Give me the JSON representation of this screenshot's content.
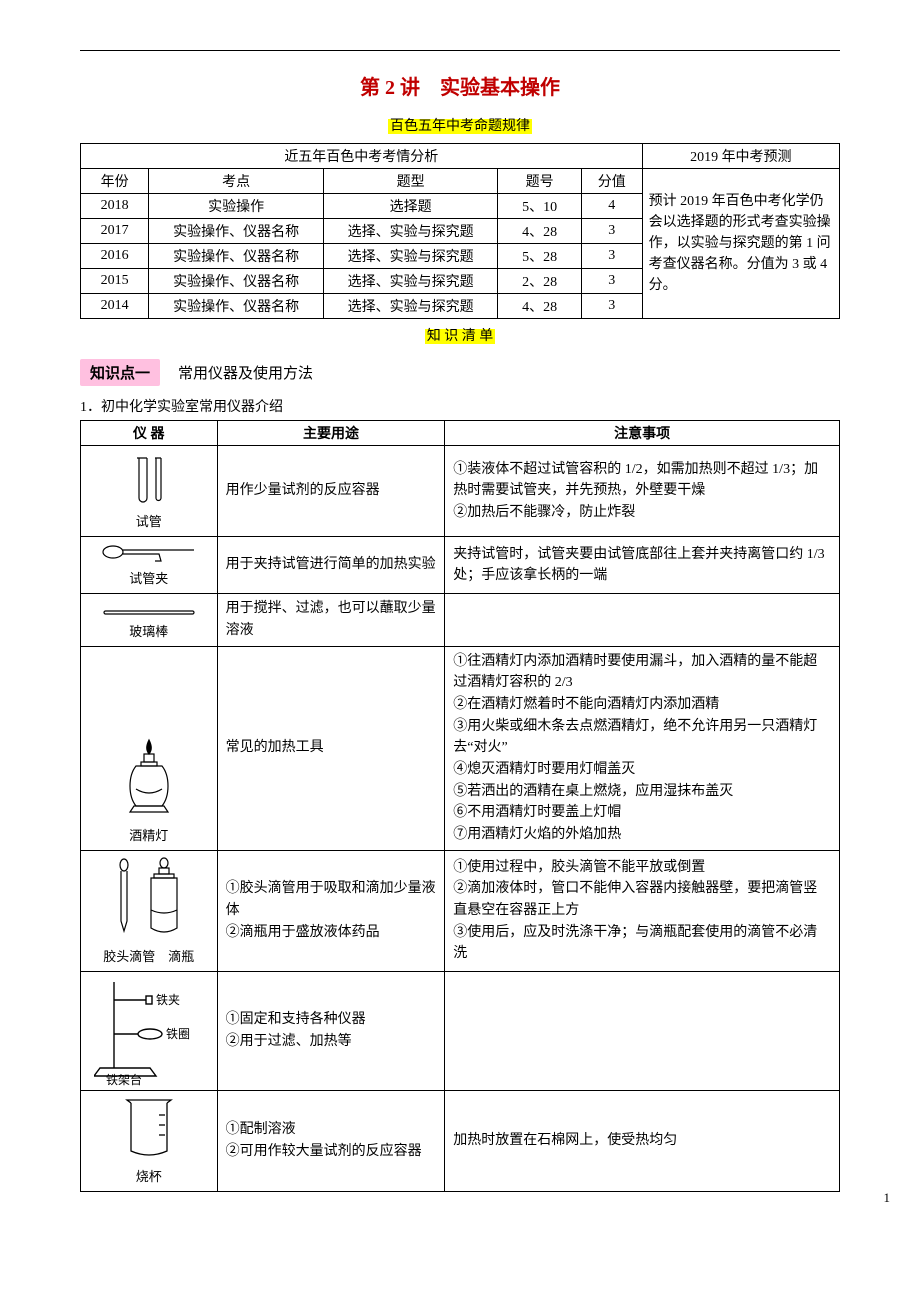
{
  "title": "第 2 讲　实验基本操作",
  "subtitle1": "百色五年中考命题规律",
  "exam_table": {
    "header_left": "近五年百色中考考情分析",
    "header_right": "2019 年中考预测",
    "cols": {
      "c1": "年份",
      "c2": "考点",
      "c3": "题型",
      "c4": "题号",
      "c5": "分值"
    },
    "rows": [
      {
        "year": "2018",
        "topic": "实验操作",
        "type": "选择题",
        "num": "5、10",
        "score": "4"
      },
      {
        "year": "2017",
        "topic": "实验操作、仪器名称",
        "type": "选择、实验与探究题",
        "num": "4、28",
        "score": "3"
      },
      {
        "year": "2016",
        "topic": "实验操作、仪器名称",
        "type": "选择、实验与探究题",
        "num": "5、28",
        "score": "3"
      },
      {
        "year": "2015",
        "topic": "实验操作、仪器名称",
        "type": "选择、实验与探究题",
        "num": "2、28",
        "score": "3"
      },
      {
        "year": "2014",
        "topic": "实验操作、仪器名称",
        "type": "选择、实验与探究题",
        "num": "4、28",
        "score": "3"
      }
    ],
    "forecast": "预计 2019 年百色中考化学仍会以选择题的形式考查实验操作，以实验与探究题的第 1 问考查仪器名称。分值为 3 或 4 分。"
  },
  "subtitle2": "知 识 清 单",
  "section1_tag": "知识点一",
  "section1_label": "常用仪器及使用方法",
  "intro_para": "1．初中化学实验室常用仪器介绍",
  "equip_table": {
    "h1": "仪 器",
    "h2": "主要用途",
    "h3": "注意事项",
    "rows": [
      {
        "name": "试管",
        "use": "用作少量试剂的反应容器",
        "note": "①装液体不超过试管容积的 1/2，如需加热则不超过 1/3；加热时需要试管夹，并先预热，外壁要干燥\n②加热后不能骤冷，防止炸裂"
      },
      {
        "name": "试管夹",
        "use": "用于夹持试管进行简单的加热实验",
        "note": "夹持试管时，试管夹要由试管底部往上套并夹持离管口约 1/3 处；手应该拿长柄的一端"
      },
      {
        "name": "玻璃棒",
        "use": "用于搅拌、过滤，也可以蘸取少量溶液",
        "note": ""
      },
      {
        "name": "酒精灯",
        "use": "常见的加热工具",
        "note": "①往酒精灯内添加酒精时要使用漏斗，加入酒精的量不能超过酒精灯容积的 2/3\n②在酒精灯燃着时不能向酒精灯内添加酒精\n③用火柴或细木条去点燃酒精灯，绝不允许用另一只酒精灯去“对火”\n④熄灭酒精灯时要用灯帽盖灭\n⑤若洒出的酒精在桌上燃烧，应用湿抹布盖灭\n⑥不用酒精灯时要盖上灯帽\n⑦用酒精灯火焰的外焰加热"
      },
      {
        "name": "胶头滴管　滴瓶",
        "use": "①胶头滴管用于吸取和滴加少量液体\n②滴瓶用于盛放液体药品",
        "note": "①使用过程中，胶头滴管不能平放或倒置\n②滴加液体时，管口不能伸入容器内接触器壁，要把滴管竖直悬空在容器正上方\n③使用后，应及时洗涤干净；与滴瓶配套使用的滴管不必清洗"
      },
      {
        "name_lines": [
          "铁夹",
          "铁圈",
          "铁架台"
        ],
        "use": "①固定和支持各种仪器\n②用于过滤、加热等",
        "note": ""
      },
      {
        "name": "烧杯",
        "use": "①配制溶液\n②可用作较大量试剂的反应容器",
        "note": "加热时放置在石棉网上，使受热均匀"
      }
    ]
  },
  "page_num": "1",
  "colors": {
    "title": "#c00000",
    "hl": "#ffff00",
    "pink": "#ffc0e0",
    "border": "#000000"
  }
}
